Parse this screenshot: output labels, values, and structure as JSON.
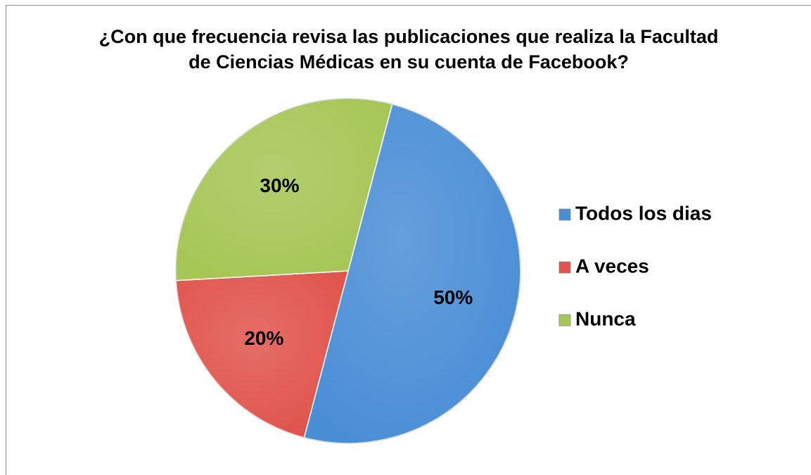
{
  "chart_data": {
    "type": "pie",
    "title": "¿Con que frecuencia revisa las publicaciones que realiza la Facultad de Ciencias Médicas en su cuenta de Facebook?",
    "categories": [
      "Todos los dias",
      "A veces",
      "Nunca"
    ],
    "values": [
      50,
      20,
      30
    ],
    "value_labels": [
      "50%",
      "20%",
      "30%"
    ],
    "colors": [
      "#4a8ed6",
      "#e0544c",
      "#a6c655"
    ],
    "legend": "right"
  }
}
